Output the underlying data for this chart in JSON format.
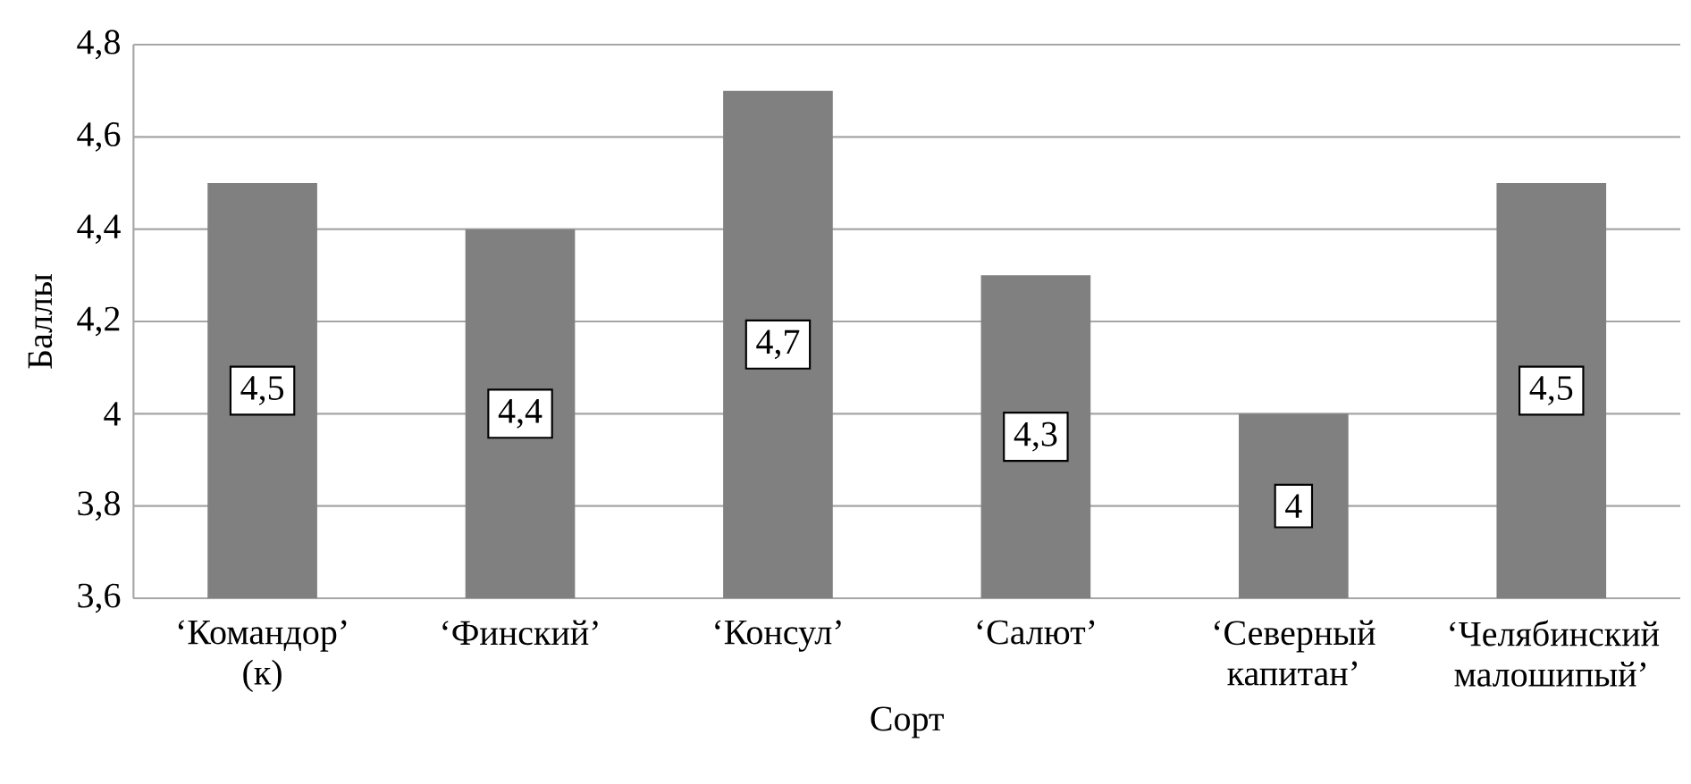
{
  "chart_data": {
    "type": "bar",
    "xlabel": "Сорт",
    "ylabel": "Баллы",
    "categories": [
      "‘Командор’ (к)",
      "‘Финский’",
      "‘Консул’",
      "‘Салют’",
      "‘Северный капитан’",
      "‘Челябинский малошипый’"
    ],
    "values": [
      4.5,
      4.4,
      4.7,
      4.3,
      4,
      4.5
    ],
    "value_labels": [
      "4,5",
      "4,4",
      "4,7",
      "4,3",
      "4",
      "4,5"
    ],
    "color": "#808080",
    "ylim": [
      3.6,
      4.8
    ],
    "yticks": [
      {
        "value": 3.6,
        "label": "3,6"
      },
      {
        "value": 3.8,
        "label": "3,8"
      },
      4,
      {
        "value": 4.2,
        "label": "4,2"
      },
      {
        "value": 4.4,
        "label": "4,4"
      },
      {
        "value": 4.6,
        "label": "4,6"
      },
      {
        "value": 4.8,
        "label": "4,8"
      }
    ],
    "grid": "y"
  }
}
